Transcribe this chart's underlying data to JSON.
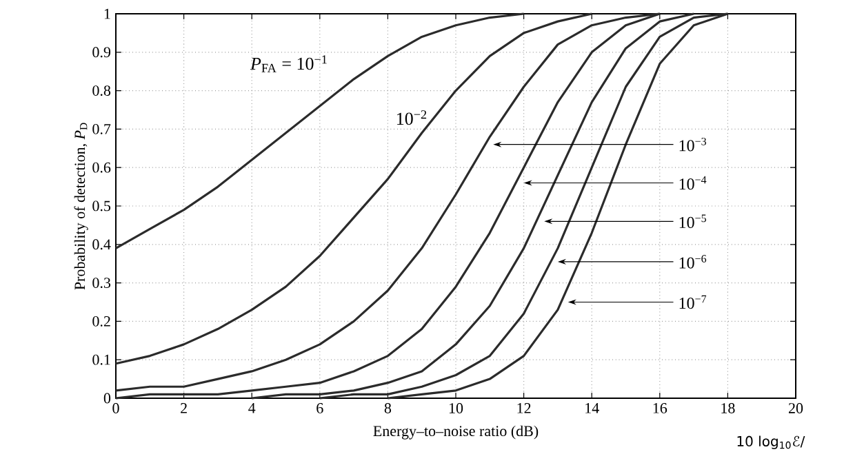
{
  "chart_data": {
    "type": "line",
    "xlabel": "Energy–to–noise ratio (dB)",
    "ylabel": "Probability of detection, *P*$_{D}$",
    "x": [
      0,
      1,
      2,
      3,
      4,
      5,
      6,
      7,
      8,
      9,
      10,
      11,
      12,
      13,
      14,
      15,
      16,
      17,
      18
    ],
    "series": [
      {
        "color": "#2b2b2b",
        "values": [
          0.39,
          0.44,
          0.49,
          0.55,
          0.62,
          0.69,
          0.76,
          0.83,
          0.89,
          0.94,
          0.97,
          0.99,
          1.0,
          null,
          null,
          null,
          null,
          null,
          null
        ]
      },
      {
        "color": "#2b2b2b",
        "values": [
          0.09,
          0.11,
          0.14,
          0.18,
          0.23,
          0.29,
          0.37,
          0.47,
          0.57,
          0.69,
          0.8,
          0.89,
          0.95,
          0.98,
          1.0,
          null,
          null,
          null,
          null
        ]
      },
      {
        "color": "#2b2b2b",
        "values": [
          0.02,
          0.03,
          0.03,
          0.05,
          0.07,
          0.1,
          0.14,
          0.2,
          0.28,
          0.39,
          0.53,
          0.68,
          0.81,
          0.92,
          0.97,
          0.99,
          1.0,
          null,
          null
        ]
      },
      {
        "color": "#2b2b2b",
        "values": [
          0.0,
          0.01,
          0.01,
          0.01,
          0.02,
          0.03,
          0.04,
          0.07,
          0.11,
          0.18,
          0.29,
          0.43,
          0.6,
          0.77,
          0.9,
          0.97,
          1.0,
          null,
          null
        ]
      },
      {
        "color": "#2b2b2b",
        "values": [
          null,
          null,
          null,
          null,
          0.0,
          0.01,
          0.01,
          0.02,
          0.04,
          0.07,
          0.14,
          0.24,
          0.39,
          0.58,
          0.77,
          0.91,
          0.98,
          1.0,
          null
        ]
      },
      {
        "color": "#2b2b2b",
        "values": [
          null,
          null,
          null,
          null,
          null,
          null,
          0.0,
          0.01,
          0.01,
          0.03,
          0.06,
          0.11,
          0.22,
          0.39,
          0.6,
          0.81,
          0.94,
          0.99,
          1.0
        ]
      },
      {
        "color": "#2b2b2b",
        "values": [
          null,
          null,
          null,
          null,
          null,
          null,
          null,
          null,
          0.0,
          0.01,
          0.02,
          0.05,
          0.11,
          0.23,
          0.43,
          0.66,
          0.87,
          0.97,
          1.0
        ]
      }
    ],
    "xlim": [
      0,
      20
    ],
    "ylim": [
      0,
      1
    ],
    "xticks": [
      0,
      2,
      4,
      6,
      8,
      10,
      12,
      14,
      16,
      18,
      20
    ],
    "yticks": [
      0,
      0.1,
      0.2,
      0.3,
      0.4,
      0.5,
      0.6,
      0.7,
      0.8,
      0.9,
      1
    ],
    "grid": true,
    "marker": "none",
    "line_style": "solid",
    "annotations": [
      "*P*$_{FA}$ = 10$^{−1}$",
      "10$^{−2}$",
      "10$^{−3}$",
      "10$^{−4}$",
      "10$^{−5}$",
      "10$^{−6}$",
      "10$^{−7}$",
      "10 log$_{10}$ℰ/"
    ]
  }
}
